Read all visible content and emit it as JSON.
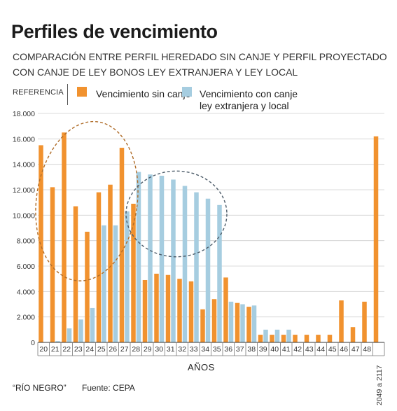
{
  "title": "Perfiles de vencimiento",
  "subtitle": "COMPARACIÓN ENTRE PERFIL HEREDADO SIN CANJE Y PERFIL PROYECTADO CON CANJE DE LEY BONOS LEY EXTRANJERA Y LEY LOCAL",
  "legend": {
    "reference_label": "REFERENCIA",
    "items": [
      {
        "label": "Vencimiento sin canje",
        "color": "#f1922f"
      },
      {
        "label": "Vencimiento con canje ley extranjera y local",
        "color": "#a6cde0"
      }
    ]
  },
  "footer": {
    "outlet": "“RÍO NEGRO”",
    "source": "Fuente: CEPA"
  },
  "chart_data": {
    "type": "bar",
    "title": "Perfiles de vencimiento",
    "xlabel": "AÑOS",
    "ylabel": "",
    "ylim": [
      0,
      18000
    ],
    "yticks": [
      "0",
      "2.000",
      "4.000",
      "6.000",
      "8.000",
      "10.000",
      "12.000",
      "14.000",
      "16.000",
      "18.000"
    ],
    "grid": true,
    "legend_position": "top",
    "categories": [
      "20",
      "21",
      "22",
      "23",
      "24",
      "25",
      "26",
      "27",
      "28",
      "29",
      "30",
      "31",
      "32",
      "33",
      "34",
      "35",
      "36",
      "37",
      "38",
      "39",
      "40",
      "41",
      "42",
      "43",
      "44",
      "45",
      "46",
      "47",
      "48",
      "2049 a 2117"
    ],
    "series": [
      {
        "name": "Vencimiento sin canje",
        "color": "#f1922f",
        "values": [
          15500,
          12200,
          16500,
          10700,
          8700,
          11800,
          12400,
          15300,
          10900,
          4900,
          5400,
          5300,
          5000,
          4800,
          2600,
          3400,
          5100,
          3100,
          2800,
          600,
          600,
          600,
          600,
          600,
          600,
          600,
          3300,
          1200,
          3200,
          16200
        ]
      },
      {
        "name": "Vencimiento con canje ley extranjera y local",
        "color": "#a6cde0",
        "values": [
          0,
          100,
          1100,
          1800,
          2700,
          9200,
          9200,
          10300,
          13400,
          13200,
          13100,
          12800,
          12300,
          11800,
          11300,
          10800,
          3200,
          3000,
          2900,
          1000,
          1000,
          1000,
          0,
          0,
          0,
          0,
          0,
          0,
          0,
          0
        ]
      }
    ],
    "annotations": [
      {
        "shape": "dashed-ellipse",
        "color": "#b06d2a",
        "around_categories": [
          "20",
          "27"
        ]
      },
      {
        "shape": "dashed-ellipse",
        "color": "#4f5e6b",
        "around_categories": [
          "28",
          "35"
        ]
      }
    ]
  }
}
